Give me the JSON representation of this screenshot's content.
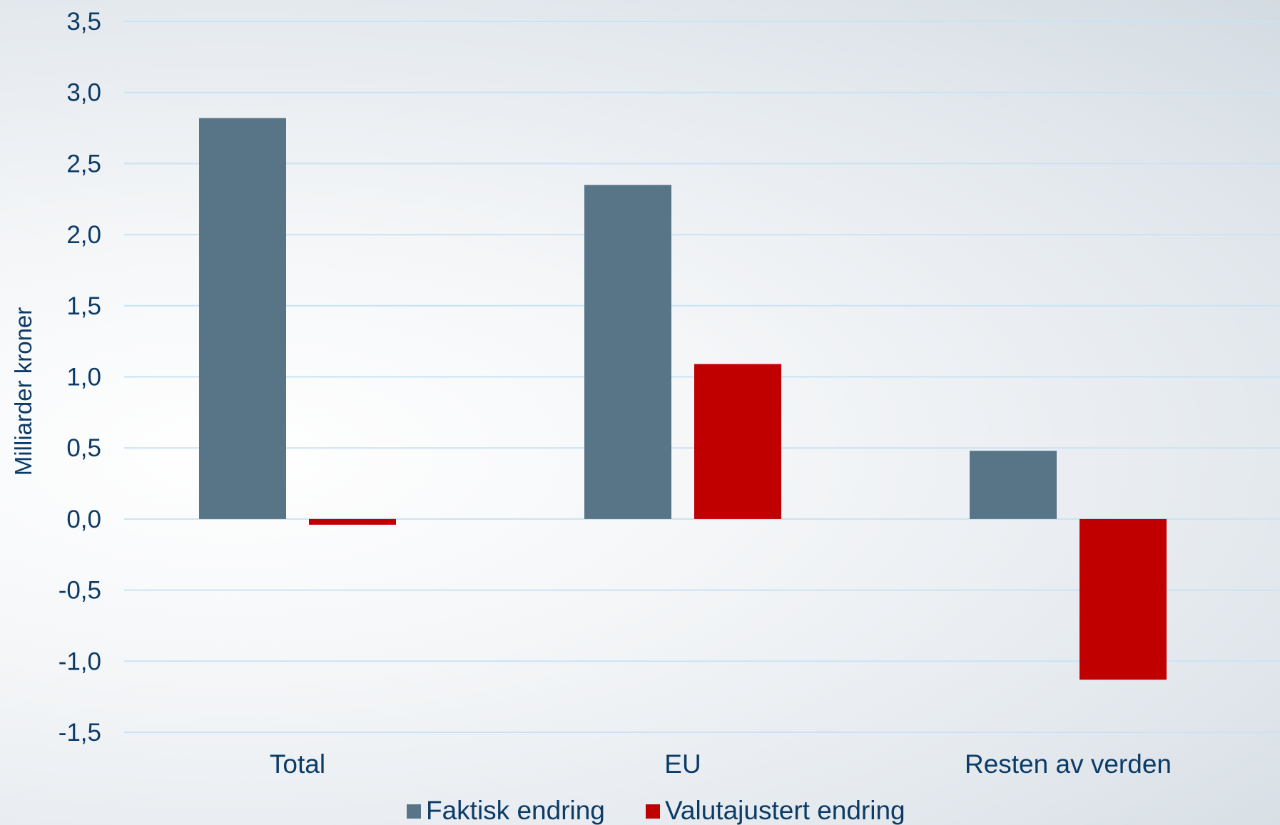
{
  "chart_data": {
    "type": "bar",
    "title": "",
    "xlabel": "",
    "ylabel": "Milliarder kroner",
    "categories": [
      "Total",
      "EU",
      "Resten av verden"
    ],
    "series": [
      {
        "name": "Faktisk endring",
        "color": "#587487",
        "values": [
          2.82,
          2.35,
          0.48
        ]
      },
      {
        "name": "Valutajustert endring",
        "color": "#c00000",
        "values": [
          -0.04,
          1.09,
          -1.13
        ]
      }
    ],
    "ylim": [
      -1.5,
      3.5
    ],
    "yticks": [
      -1.5,
      -1.0,
      -0.5,
      0.0,
      0.5,
      1.0,
      1.5,
      2.0,
      2.5,
      3.0,
      3.5
    ],
    "ytick_labels": [
      "-1,5",
      "-1,0",
      "-0,5",
      "0,0",
      "0,5",
      "1,0",
      "1,5",
      "2,0",
      "2,5",
      "3,0",
      "3,5"
    ],
    "grid": true,
    "legend_position": "bottom-center",
    "gridline_color": "#c9e3f5"
  }
}
